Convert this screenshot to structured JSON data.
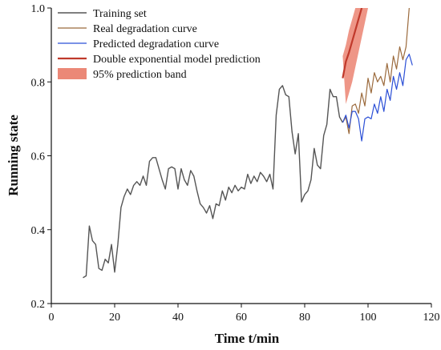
{
  "chart_data": {
    "type": "line",
    "xlabel": "Time t/min",
    "ylabel": "Running state",
    "xlim": [
      0,
      120
    ],
    "ylim": [
      0.2,
      1.0
    ],
    "x_ticks": [
      0,
      20,
      40,
      60,
      80,
      100,
      120
    ],
    "y_ticks": [
      0.2,
      0.4,
      0.6,
      0.8,
      1.0
    ],
    "y_tick_labels": [
      "0.2",
      "0.4",
      "0.6",
      "0.8",
      "1.0"
    ],
    "grid": false,
    "legend_position": "top-left",
    "series": [
      {
        "name": "Training set",
        "color": "#555555",
        "points": [
          [
            10,
            0.27
          ],
          [
            11,
            0.275
          ],
          [
            12,
            0.41
          ],
          [
            13,
            0.37
          ],
          [
            14,
            0.36
          ],
          [
            15,
            0.295
          ],
          [
            16,
            0.29
          ],
          [
            17,
            0.32
          ],
          [
            18,
            0.31
          ],
          [
            19,
            0.36
          ],
          [
            20,
            0.285
          ],
          [
            21,
            0.36
          ],
          [
            22,
            0.46
          ],
          [
            23,
            0.49
          ],
          [
            24,
            0.51
          ],
          [
            25,
            0.495
          ],
          [
            26,
            0.52
          ],
          [
            27,
            0.53
          ],
          [
            28,
            0.52
          ],
          [
            29,
            0.545
          ],
          [
            30,
            0.52
          ],
          [
            31,
            0.585
          ],
          [
            32,
            0.595
          ],
          [
            33,
            0.595
          ],
          [
            34,
            0.565
          ],
          [
            35,
            0.535
          ],
          [
            36,
            0.51
          ],
          [
            37,
            0.565
          ],
          [
            38,
            0.57
          ],
          [
            39,
            0.565
          ],
          [
            40,
            0.51
          ],
          [
            41,
            0.565
          ],
          [
            42,
            0.535
          ],
          [
            43,
            0.52
          ],
          [
            44,
            0.56
          ],
          [
            45,
            0.545
          ],
          [
            46,
            0.505
          ],
          [
            47,
            0.47
          ],
          [
            48,
            0.46
          ],
          [
            49,
            0.445
          ],
          [
            50,
            0.465
          ],
          [
            51,
            0.43
          ],
          [
            52,
            0.47
          ],
          [
            53,
            0.465
          ],
          [
            54,
            0.505
          ],
          [
            55,
            0.48
          ],
          [
            56,
            0.515
          ],
          [
            57,
            0.5
          ],
          [
            58,
            0.52
          ],
          [
            59,
            0.505
          ],
          [
            60,
            0.515
          ],
          [
            61,
            0.51
          ],
          [
            62,
            0.55
          ],
          [
            63,
            0.525
          ],
          [
            64,
            0.545
          ],
          [
            65,
            0.53
          ],
          [
            66,
            0.555
          ],
          [
            67,
            0.545
          ],
          [
            68,
            0.53
          ],
          [
            69,
            0.55
          ],
          [
            70,
            0.51
          ],
          [
            71,
            0.71
          ],
          [
            72,
            0.78
          ],
          [
            73,
            0.79
          ],
          [
            74,
            0.765
          ],
          [
            75,
            0.76
          ],
          [
            76,
            0.665
          ],
          [
            77,
            0.605
          ],
          [
            78,
            0.66
          ],
          [
            79,
            0.475
          ],
          [
            80,
            0.495
          ],
          [
            81,
            0.505
          ],
          [
            82,
            0.535
          ],
          [
            83,
            0.62
          ],
          [
            84,
            0.575
          ],
          [
            85,
            0.565
          ],
          [
            86,
            0.655
          ],
          [
            87,
            0.685
          ],
          [
            88,
            0.78
          ],
          [
            89,
            0.76
          ],
          [
            90,
            0.76
          ],
          [
            91,
            0.705
          ],
          [
            92,
            0.69
          ]
        ]
      },
      {
        "name": "Real degradation curve",
        "color": "#9b6a3c",
        "points": [
          [
            92,
            0.69
          ],
          [
            93,
            0.705
          ],
          [
            94,
            0.66
          ],
          [
            95,
            0.735
          ],
          [
            96,
            0.74
          ],
          [
            97,
            0.715
          ],
          [
            98,
            0.77
          ],
          [
            99,
            0.735
          ],
          [
            100,
            0.81
          ],
          [
            101,
            0.77
          ],
          [
            102,
            0.825
          ],
          [
            103,
            0.8
          ],
          [
            104,
            0.815
          ],
          [
            105,
            0.79
          ],
          [
            106,
            0.85
          ],
          [
            107,
            0.8
          ],
          [
            108,
            0.87
          ],
          [
            109,
            0.835
          ],
          [
            110,
            0.895
          ],
          [
            111,
            0.86
          ],
          [
            112,
            0.895
          ],
          [
            113,
            1.0
          ]
        ]
      },
      {
        "name": "Predicted degradation curve",
        "color": "#2b4fd6",
        "points": [
          [
            92,
            0.69
          ],
          [
            93,
            0.71
          ],
          [
            94,
            0.675
          ],
          [
            95,
            0.72
          ],
          [
            96,
            0.72
          ],
          [
            97,
            0.7
          ],
          [
            98,
            0.64
          ],
          [
            99,
            0.7
          ],
          [
            100,
            0.705
          ],
          [
            101,
            0.7
          ],
          [
            102,
            0.74
          ],
          [
            103,
            0.715
          ],
          [
            104,
            0.76
          ],
          [
            105,
            0.72
          ],
          [
            106,
            0.78
          ],
          [
            107,
            0.75
          ],
          [
            108,
            0.815
          ],
          [
            109,
            0.78
          ],
          [
            110,
            0.825
          ],
          [
            111,
            0.79
          ],
          [
            112,
            0.86
          ],
          [
            113,
            0.875
          ],
          [
            114,
            0.845
          ]
        ]
      },
      {
        "name": "Double exponential model prediction",
        "color": "#c0392b",
        "points": [
          [
            92,
            0.81
          ],
          [
            93,
            0.855
          ],
          [
            94,
            0.88
          ],
          [
            95,
            0.91
          ],
          [
            96,
            0.94
          ],
          [
            97,
            0.97
          ],
          [
            98,
            1.0
          ]
        ]
      }
    ],
    "band": {
      "name": "95% prediction band",
      "color": "#e8735f",
      "upper": [
        [
          92,
          0.87
        ],
        [
          93,
          0.9
        ],
        [
          94,
          0.94
        ],
        [
          95,
          0.97
        ],
        [
          96,
          1.0
        ]
      ],
      "lower": [
        [
          93,
          0.74
        ],
        [
          94,
          0.77
        ],
        [
          95,
          0.8
        ],
        [
          96,
          0.84
        ],
        [
          97,
          0.88
        ],
        [
          98,
          0.92
        ],
        [
          99,
          0.96
        ],
        [
          100,
          1.0
        ]
      ]
    }
  }
}
